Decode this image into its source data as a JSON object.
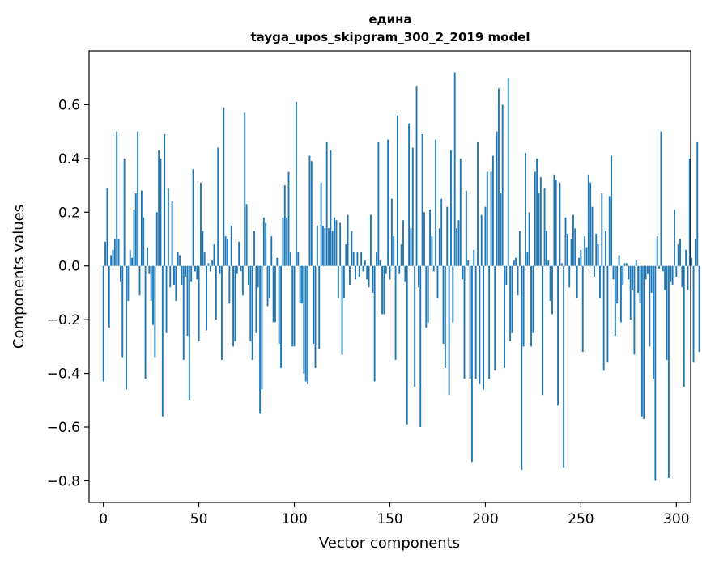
{
  "chart_data": {
    "type": "bar",
    "title": "едина",
    "subtitle": "tayga_upos_skipgram_300_2_2019 model",
    "xlabel": "Vector components",
    "ylabel": "Components values",
    "xlim": [
      -7.5,
      307.5
    ],
    "ylim": [
      -0.88,
      0.8
    ],
    "xticks": [
      0,
      50,
      100,
      150,
      200,
      250,
      300
    ],
    "yticks": [
      -0.8,
      -0.6,
      -0.4,
      -0.2,
      0.0,
      0.2,
      0.4,
      0.6
    ],
    "ytick_labels": [
      "−0.8",
      "−0.6",
      "−0.4",
      "−0.2",
      "0.0",
      "0.2",
      "0.4",
      "0.6"
    ],
    "grid": false,
    "bar_color": "#1f77b4",
    "values": [
      -0.43,
      0.09,
      0.29,
      -0.23,
      0.04,
      0.06,
      0.1,
      0.5,
      0.1,
      -0.06,
      -0.34,
      0.4,
      -0.46,
      -0.13,
      0.06,
      0.03,
      0.21,
      0.27,
      0.5,
      -0.11,
      0.28,
      0.18,
      -0.42,
      0.07,
      -0.03,
      -0.13,
      -0.22,
      -0.34,
      0.2,
      0.43,
      0.4,
      -0.56,
      0.49,
      -0.25,
      0.29,
      -0.08,
      0.24,
      -0.07,
      -0.13,
      0.05,
      0.04,
      -0.07,
      -0.35,
      -0.04,
      -0.26,
      -0.5,
      -0.06,
      0.36,
      -0.02,
      -0.05,
      -0.28,
      0.31,
      0.13,
      0.05,
      -0.24,
      0.01,
      -0.02,
      0.02,
      0.08,
      -0.2,
      0.44,
      -0.03,
      -0.35,
      0.59,
      0.11,
      0.1,
      -0.14,
      0.15,
      -0.3,
      -0.28,
      -0.03,
      0.09,
      -0.02,
      -0.11,
      0.57,
      0.23,
      -0.07,
      -0.28,
      -0.35,
      0.13,
      -0.25,
      -0.08,
      -0.55,
      -0.46,
      0.18,
      0.16,
      -0.15,
      -0.12,
      0.11,
      -0.21,
      -0.21,
      0.03,
      -0.29,
      -0.38,
      0.18,
      0.3,
      0.18,
      0.35,
      0.05,
      -0.3,
      -0.3,
      0.61,
      0.05,
      -0.14,
      -0.14,
      -0.4,
      -0.43,
      -0.44,
      0.41,
      0.39,
      -0.29,
      -0.38,
      0.15,
      -0.31,
      0.31,
      0.15,
      0.14,
      0.46,
      0.14,
      0.43,
      0.13,
      0.18,
      0.17,
      -0.12,
      0.16,
      -0.33,
      -0.12,
      0.08,
      0.19,
      -0.07,
      0.13,
      0.05,
      -0.05,
      0.05,
      -0.04,
      0.05,
      -0.02,
      0.02,
      -0.05,
      -0.08,
      0.19,
      -0.1,
      -0.43,
      0.05,
      0.46,
      0.02,
      -0.18,
      -0.18,
      -0.03,
      0.47,
      -0.05,
      0.25,
      0.11,
      -0.35,
      0.56,
      -0.03,
      0.08,
      0.17,
      -0.06,
      -0.59,
      0.53,
      0.14,
      0.44,
      -0.45,
      0.67,
      -0.08,
      -0.6,
      0.49,
      0.2,
      -0.23,
      -0.21,
      0.21,
      0.11,
      -0.02,
      0.47,
      -0.12,
      0.14,
      0.25,
      -0.29,
      -0.38,
      0.22,
      -0.48,
      0.43,
      -0.21,
      0.72,
      0.14,
      0.17,
      0.4,
      -0.05,
      -0.42,
      0.28,
      0.02,
      -0.42,
      -0.73,
      0.06,
      -0.42,
      0.46,
      -0.44,
      0.19,
      -0.46,
      0.22,
      0.35,
      -0.42,
      0.35,
      0.41,
      -0.39,
      0.5,
      0.66,
      0.27,
      0.6,
      -0.38,
      -0.07,
      0.7,
      -0.28,
      -0.25,
      0.02,
      0.03,
      -0.11,
      0.13,
      -0.76,
      -0.3,
      0.42,
      0.05,
      0.2,
      -0.3,
      -0.25,
      0.35,
      0.4,
      0.27,
      0.33,
      -0.48,
      0.29,
      0.13,
      0.02,
      -0.13,
      -0.18,
      0.34,
      0.32,
      -0.52,
      0.31,
      0.01,
      -0.75,
      0.18,
      0.12,
      -0.08,
      0.1,
      0.19,
      0.14,
      -0.12,
      0.03,
      0.06,
      -0.32,
      0.11,
      0.07,
      0.34,
      0.31,
      0.22,
      -0.04,
      0.12,
      0.08,
      -0.12,
      0.27,
      -0.39,
      0.13,
      -0.36,
      0.26,
      0.41,
      -0.05,
      -0.26,
      -0.14,
      0.04,
      -0.21,
      -0.07,
      0.01,
      0.01,
      -0.05,
      -0.2,
      -0.09,
      -0.33,
      0.02,
      -0.1,
      -0.14,
      -0.56,
      -0.57,
      -0.05,
      -0.03,
      -0.3,
      -0.1,
      -0.42,
      -0.8,
      0.11,
      -0.01,
      0.5,
      -0.02,
      -0.09,
      -0.35,
      -0.79,
      -0.06,
      -0.07,
      0.21,
      -0.04,
      0.08,
      0.1,
      -0.08,
      -0.45,
      0.06,
      -0.09,
      0.4,
      0.03,
      -0.36,
      0.1,
      0.46,
      -0.32
    ]
  }
}
